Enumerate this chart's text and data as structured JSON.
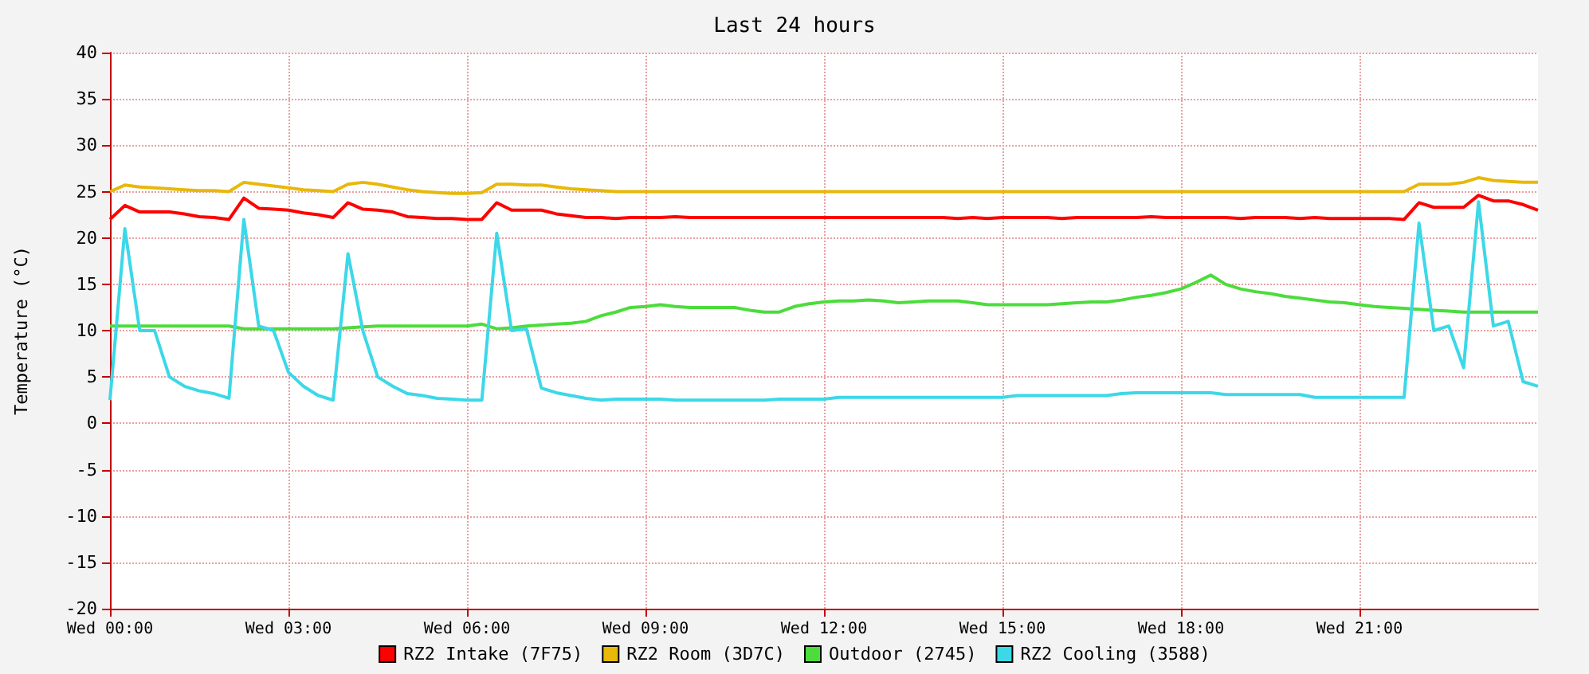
{
  "chart_data": {
    "type": "line",
    "title": "Last 24 hours",
    "ylabel": "Temperature (°C)",
    "categories": [
      "Wed 00:00",
      null,
      null,
      null,
      null,
      null,
      null,
      null,
      null,
      null,
      null,
      null,
      "Wed 03:00",
      null,
      null,
      null,
      null,
      null,
      null,
      null,
      null,
      null,
      null,
      null,
      "Wed 06:00",
      null,
      null,
      null,
      null,
      null,
      null,
      null,
      null,
      null,
      null,
      null,
      "Wed 09:00",
      null,
      null,
      null,
      null,
      null,
      null,
      null,
      null,
      null,
      null,
      null,
      "Wed 12:00",
      null,
      null,
      null,
      null,
      null,
      null,
      null,
      null,
      null,
      null,
      null,
      "Wed 15:00",
      null,
      null,
      null,
      null,
      null,
      null,
      null,
      null,
      null,
      null,
      null,
      "Wed 18:00",
      null,
      null,
      null,
      null,
      null,
      null,
      null,
      null,
      null,
      null,
      null,
      "Wed 21:00",
      null,
      null,
      null,
      null,
      null,
      null,
      null,
      null,
      null,
      null,
      null,
      null
    ],
    "ylim": [
      -20,
      40
    ],
    "yticks": [
      -20,
      -15,
      -10,
      -5,
      0,
      5,
      10,
      15,
      20,
      25,
      30,
      35,
      40
    ],
    "grid": true,
    "legend": "bottom",
    "marker": "none",
    "line_style": "solid",
    "series": [
      {
        "name": "RZ2 Intake (7F75)",
        "color": "#ff0000",
        "values": [
          22,
          23.5,
          22.8,
          22.8,
          22.8,
          22.6,
          22.3,
          22.2,
          22,
          24.3,
          23.2,
          23.1,
          23,
          22.7,
          22.5,
          22.2,
          23.8,
          23.1,
          23,
          22.8,
          22.3,
          22.2,
          22.1,
          22.1,
          22,
          22,
          23.8,
          23,
          23,
          23,
          22.6,
          22.4,
          22.2,
          22.2,
          22.1,
          22.2,
          22.2,
          22.2,
          22.3,
          22.2,
          22.2,
          22.2,
          22.2,
          22.2,
          22.2,
          22.2,
          22.2,
          22.2,
          22.2,
          22.2,
          22.2,
          22.2,
          22.2,
          22.2,
          22.2,
          22.2,
          22.2,
          22.1,
          22.2,
          22.1,
          22.2,
          22.2,
          22.2,
          22.2,
          22.1,
          22.2,
          22.2,
          22.2,
          22.2,
          22.2,
          22.3,
          22.2,
          22.2,
          22.2,
          22.2,
          22.2,
          22.1,
          22.2,
          22.2,
          22.2,
          22.1,
          22.2,
          22.1,
          22.1,
          22.1,
          22.1,
          22.1,
          22,
          23.8,
          23.3,
          23.3,
          23.3,
          24.6,
          24,
          24,
          23.6,
          23
        ]
      },
      {
        "name": "RZ2 Room (3D7C)",
        "color": "#e8b80a",
        "values": [
          25,
          25.7,
          25.5,
          25.4,
          25.3,
          25.2,
          25.1,
          25.1,
          25,
          26,
          25.8,
          25.6,
          25.4,
          25.2,
          25.1,
          25,
          25.8,
          26,
          25.8,
          25.5,
          25.2,
          25,
          24.9,
          24.8,
          24.8,
          24.9,
          25.8,
          25.8,
          25.7,
          25.7,
          25.5,
          25.3,
          25.2,
          25.1,
          25,
          25,
          25,
          25,
          25,
          25,
          25,
          25,
          25,
          25,
          25,
          25,
          25,
          25,
          25,
          25,
          25,
          25,
          25,
          25,
          25,
          25,
          25,
          25,
          25,
          25,
          25,
          25,
          25,
          25,
          25,
          25,
          25,
          25,
          25,
          25,
          25,
          25,
          25,
          25,
          25,
          25,
          25,
          25,
          25,
          25,
          25,
          25,
          25,
          25,
          25,
          25,
          25,
          25,
          25.8,
          25.8,
          25.8,
          26,
          26.5,
          26.2,
          26.1,
          26,
          26
        ]
      },
      {
        "name": "Outdoor (2745)",
        "color": "#4cdc3c",
        "values": [
          10.5,
          10.5,
          10.5,
          10.5,
          10.5,
          10.5,
          10.5,
          10.5,
          10.5,
          10.2,
          10.2,
          10.2,
          10.2,
          10.2,
          10.2,
          10.2,
          10.3,
          10.4,
          10.5,
          10.5,
          10.5,
          10.5,
          10.5,
          10.5,
          10.5,
          10.7,
          10.2,
          10.3,
          10.5,
          10.6,
          10.7,
          10.8,
          11,
          11.6,
          12,
          12.5,
          12.6,
          12.8,
          12.6,
          12.5,
          12.5,
          12.5,
          12.5,
          12.2,
          12,
          12,
          12.6,
          12.9,
          13.1,
          13.2,
          13.2,
          13.3,
          13.2,
          13,
          13.1,
          13.2,
          13.2,
          13.2,
          13,
          12.8,
          12.8,
          12.8,
          12.8,
          12.8,
          12.9,
          13,
          13.1,
          13.1,
          13.3,
          13.6,
          13.8,
          14.1,
          14.5,
          15.2,
          16,
          15,
          14.5,
          14.2,
          14,
          13.7,
          13.5,
          13.3,
          13.1,
          13,
          12.8,
          12.6,
          12.5,
          12.4,
          12.3,
          12.2,
          12.1,
          12,
          12,
          12,
          12,
          12,
          12
        ]
      },
      {
        "name": "RZ2 Cooling (3588)",
        "color": "#3cd8e8",
        "values": [
          2.5,
          21,
          10,
          10,
          5,
          4,
          3.5,
          3.2,
          2.7,
          22,
          10.5,
          10,
          5.5,
          4,
          3,
          2.5,
          18.3,
          10,
          5,
          4,
          3.2,
          3,
          2.7,
          2.6,
          2.5,
          2.5,
          20.5,
          10,
          10.2,
          3.8,
          3.3,
          3,
          2.7,
          2.5,
          2.6,
          2.6,
          2.6,
          2.6,
          2.5,
          2.5,
          2.5,
          2.5,
          2.5,
          2.5,
          2.5,
          2.6,
          2.6,
          2.6,
          2.6,
          2.8,
          2.8,
          2.8,
          2.8,
          2.8,
          2.8,
          2.8,
          2.8,
          2.8,
          2.8,
          2.8,
          2.8,
          3,
          3,
          3,
          3,
          3,
          3,
          3,
          3.2,
          3.3,
          3.3,
          3.3,
          3.3,
          3.3,
          3.3,
          3.1,
          3.1,
          3.1,
          3.1,
          3.1,
          3.1,
          2.8,
          2.8,
          2.8,
          2.8,
          2.8,
          2.8,
          2.8,
          21.6,
          10,
          10.5,
          6,
          23.9,
          10.5,
          11,
          4.5,
          4
        ]
      }
    ]
  }
}
